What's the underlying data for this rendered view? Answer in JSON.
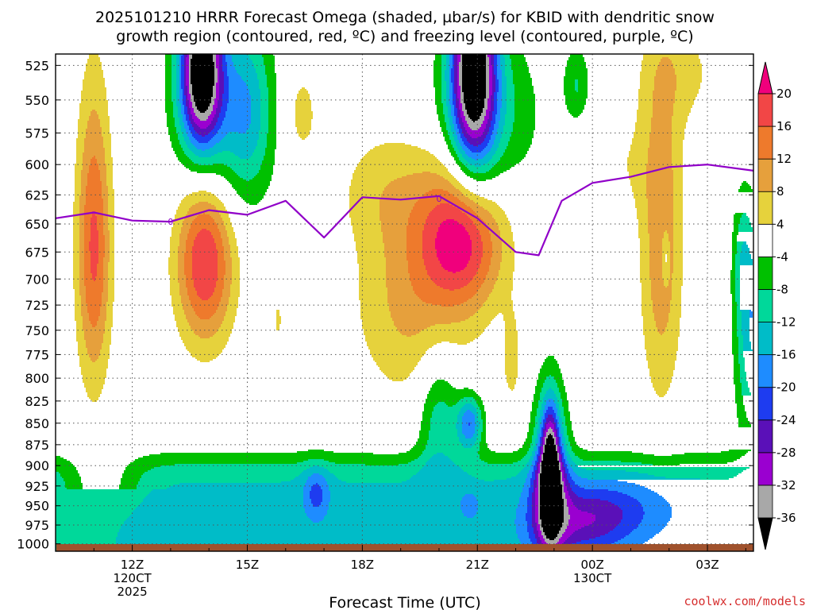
{
  "chart_data": {
    "type": "heatmap",
    "title_lines": [
      "2025101210 HRRR Forecast Omega (shaded, µbar/s) for KBID with dendritic snow",
      "growth region (contoured, red, ºC) and freezing level (contoured, purple, ºC)"
    ],
    "xlabel": "Forecast Time (UTC)",
    "credit": "coolwx.com/models",
    "y_axis": {
      "scale": "pressure (mb), inverted",
      "ylim": [
        1010,
        517
      ],
      "ticks": [
        1000,
        975,
        950,
        925,
        900,
        875,
        850,
        825,
        800,
        775,
        750,
        725,
        700,
        675,
        650,
        625,
        600,
        575,
        550,
        525
      ]
    },
    "x_axis": {
      "xlim_hours": [
        10,
        28.2
      ],
      "ticks": [
        {
          "hour": 12,
          "lines": [
            "12Z",
            "120CT",
            "2025"
          ]
        },
        {
          "hour": 15,
          "lines": [
            "15Z"
          ]
        },
        {
          "hour": 18,
          "lines": [
            "18Z"
          ]
        },
        {
          "hour": 21,
          "lines": [
            "21Z"
          ]
        },
        {
          "hour": 24,
          "lines": [
            "00Z",
            "130CT"
          ]
        },
        {
          "hour": 27,
          "lines": [
            "03Z"
          ]
        }
      ]
    },
    "grid": true,
    "colorbar": {
      "placement": "right",
      "unit": "µbar/s",
      "boundaries": [
        -36,
        -32,
        -28,
        -24,
        -20,
        -16,
        -12,
        -8,
        -4,
        4,
        8,
        12,
        16,
        20
      ],
      "colors": [
        "#000000",
        "#a8a8a8",
        "#9a00d0",
        "#5a10b8",
        "#1e3cf0",
        "#1e8cff",
        "#00bcc8",
        "#00d89a",
        "#00c000",
        "#ffffff",
        "#e6d23c",
        "#e6a03c",
        "#ee7a2c",
        "#f24646",
        "#f0007c"
      ]
    },
    "field": {
      "background": 0,
      "features": [
        {
          "name": "low-level ascent band",
          "hours": [
            10,
            28.2
          ],
          "pressures": [
            1000,
            890
          ],
          "peak_omega": -14
        },
        {
          "name": "ascent core near 21Z",
          "hour": 20.8,
          "pressure": 840,
          "peak_omega": -30
        },
        {
          "name": "ascent core near 23Z",
          "hour": 22.9,
          "pressure": 905,
          "peak_omega": -40
        },
        {
          "name": "upper ascent near 14Z",
          "hour": 13.8,
          "pressure": 527,
          "peak_omega": -40
        },
        {
          "name": "upper ascent near 21Z",
          "hour": 20.9,
          "pressure": 527,
          "peak_omega": -40
        },
        {
          "name": "subsidence near 11Z",
          "hour": 11.0,
          "pressure": 670,
          "peak_omega": 17
        },
        {
          "name": "subsidence near 14Z",
          "hour": 13.9,
          "pressure": 680,
          "peak_omega": 21
        },
        {
          "name": "subsidence near 21Z",
          "hour": 20.6,
          "pressure": 660,
          "peak_omega": 21
        },
        {
          "name": "subsidence near 02Z",
          "hour": 25.8,
          "pressure": 670,
          "peak_omega": 11
        }
      ]
    },
    "series": [
      {
        "line_color": "#9000c8",
        "hours": [
          10,
          11,
          12,
          13,
          14,
          15,
          16,
          17,
          18,
          19,
          20,
          21,
          22,
          22.6,
          23.2,
          24,
          25,
          26,
          27,
          28.2
        ],
        "pressures": [
          645,
          640,
          647,
          648,
          638,
          642,
          630,
          662,
          627,
          629,
          626,
          645,
          675,
          678,
          630,
          615,
          610,
          602,
          600,
          605
        ]
      }
    ],
    "contour_labels": [
      {
        "text": "0",
        "hour": 13.0,
        "pressure": 648
      },
      {
        "text": "0",
        "hour": 20.0,
        "pressure": 628
      }
    ]
  }
}
